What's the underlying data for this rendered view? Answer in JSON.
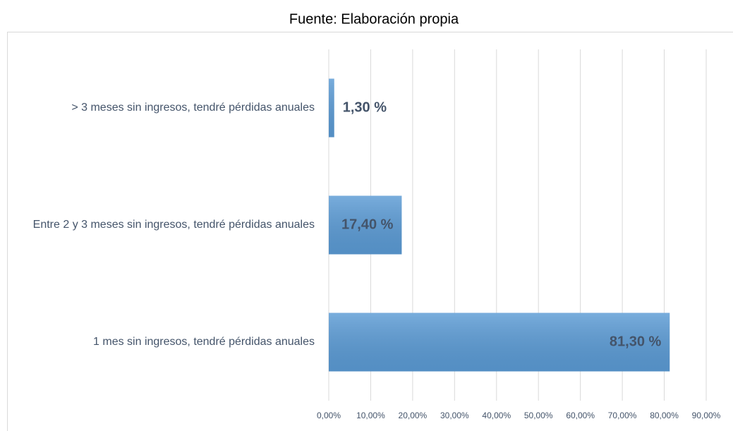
{
  "chart_data": {
    "type": "bar",
    "orientation": "horizontal",
    "title": "Fuente: Elaboración propia",
    "categories": [
      "> 3 meses sin ingresos, tendré pérdidas anuales",
      "Entre 2 y 3 meses sin ingresos, tendré pérdidas anuales",
      "1 mes sin ingresos, tendré pérdidas anuales"
    ],
    "values": [
      1.3,
      17.4,
      81.3
    ],
    "value_labels": [
      "1,30 %",
      "17,40 %",
      "81,30 %"
    ],
    "color": "#5b9bd5",
    "xlim": [
      0,
      90
    ],
    "xticks": [
      {
        "value": 0,
        "label": "0,00%"
      },
      {
        "value": 10,
        "label": "10,00%"
      },
      {
        "value": 20,
        "label": "20,00%"
      },
      {
        "value": 30,
        "label": "30,00%"
      },
      {
        "value": 40,
        "label": "40,00%"
      },
      {
        "value": 50,
        "label": "50,00%"
      },
      {
        "value": 60,
        "label": "60,00%"
      },
      {
        "value": 70,
        "label": "70,00%"
      },
      {
        "value": 80,
        "label": "80,00%"
      },
      {
        "value": 90,
        "label": "90,00%"
      }
    ],
    "grid": true
  }
}
